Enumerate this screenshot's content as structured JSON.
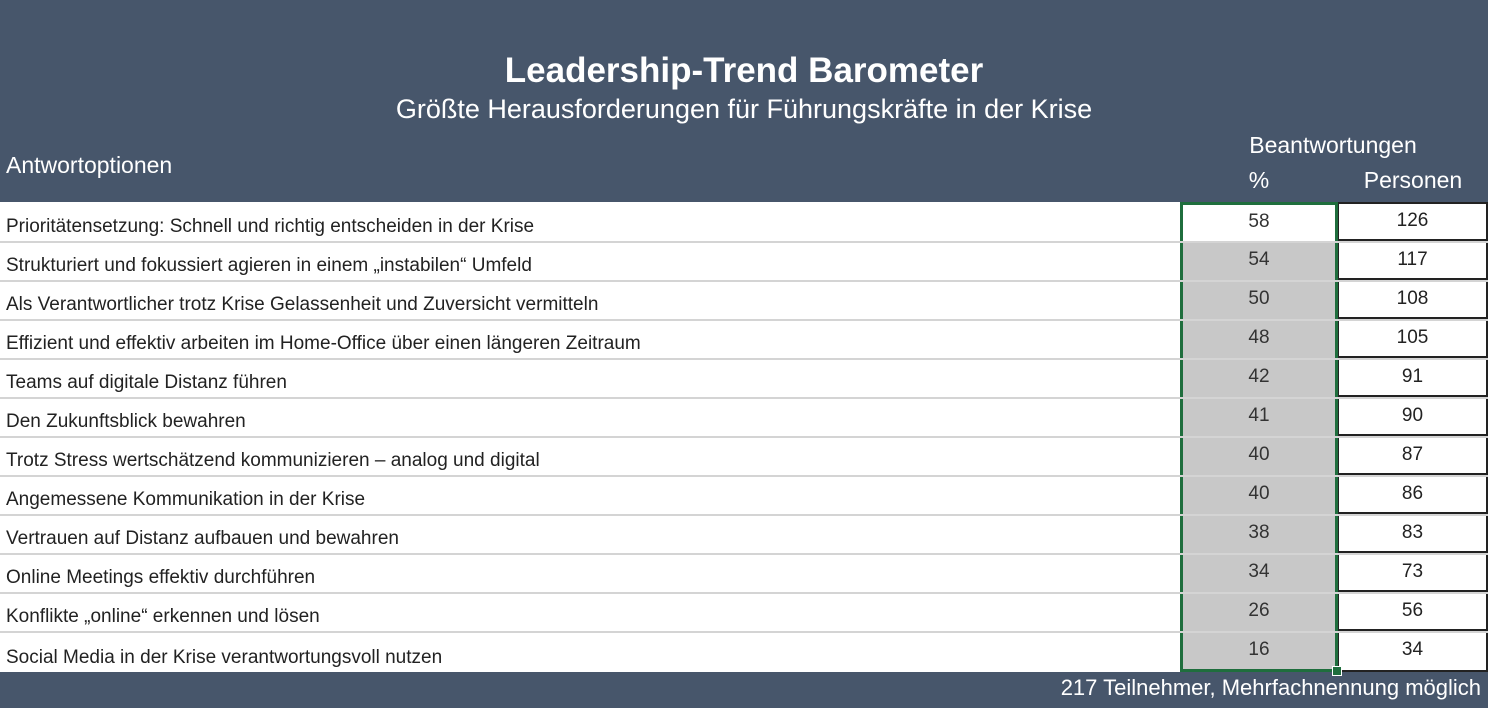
{
  "title": "Leadership-Trend Barometer",
  "subtitle": "Größte Herausforderungen für Führungskräfte in der Krise",
  "headers": {
    "options": "Antwortoptionen",
    "group": "Beantwortungen",
    "percent": "%",
    "persons": "Personen"
  },
  "rows": [
    {
      "label": "Prioritätensetzung: Schnell und richtig entscheiden in der Krise",
      "percent": "58",
      "persons": "126"
    },
    {
      "label": "Strukturiert und fokussiert agieren in einem „instabilen“ Umfeld",
      "percent": "54",
      "persons": "117"
    },
    {
      "label": "Als Verantwortlicher trotz Krise Gelassenheit und Zuversicht vermitteln",
      "percent": "50",
      "persons": "108"
    },
    {
      "label": "Effizient und effektiv arbeiten im Home-Office über einen längeren Zeitraum",
      "percent": "48",
      "persons": "105"
    },
    {
      "label": "Teams auf digitale Distanz führen",
      "percent": "42",
      "persons": "91"
    },
    {
      "label": "Den Zukunftsblick bewahren",
      "percent": "41",
      "persons": "90"
    },
    {
      "label": "Trotz Stress wertschätzend kommunizieren – analog und digital",
      "percent": "40",
      "persons": "87"
    },
    {
      "label": "Angemessene Kommunikation in der Krise",
      "percent": "40",
      "persons": "86"
    },
    {
      "label": "Vertrauen auf Distanz aufbauen und bewahren",
      "percent": "38",
      "persons": "83"
    },
    {
      "label": "Online Meetings effektiv durchführen",
      "percent": "34",
      "persons": "73"
    },
    {
      "label": "Konflikte „online“ erkennen und lösen",
      "percent": "26",
      "persons": "56"
    },
    {
      "label": "Social Media in der Krise verantwortungsvoll nutzen",
      "percent": "16",
      "persons": "34"
    }
  ],
  "footer": "217 Teilnehmer, Mehrfachnennung möglich",
  "colors": {
    "header_bg": "#47566b",
    "selection_border": "#1f6e3d",
    "selected_cell_bg": "#c8c8c8"
  }
}
